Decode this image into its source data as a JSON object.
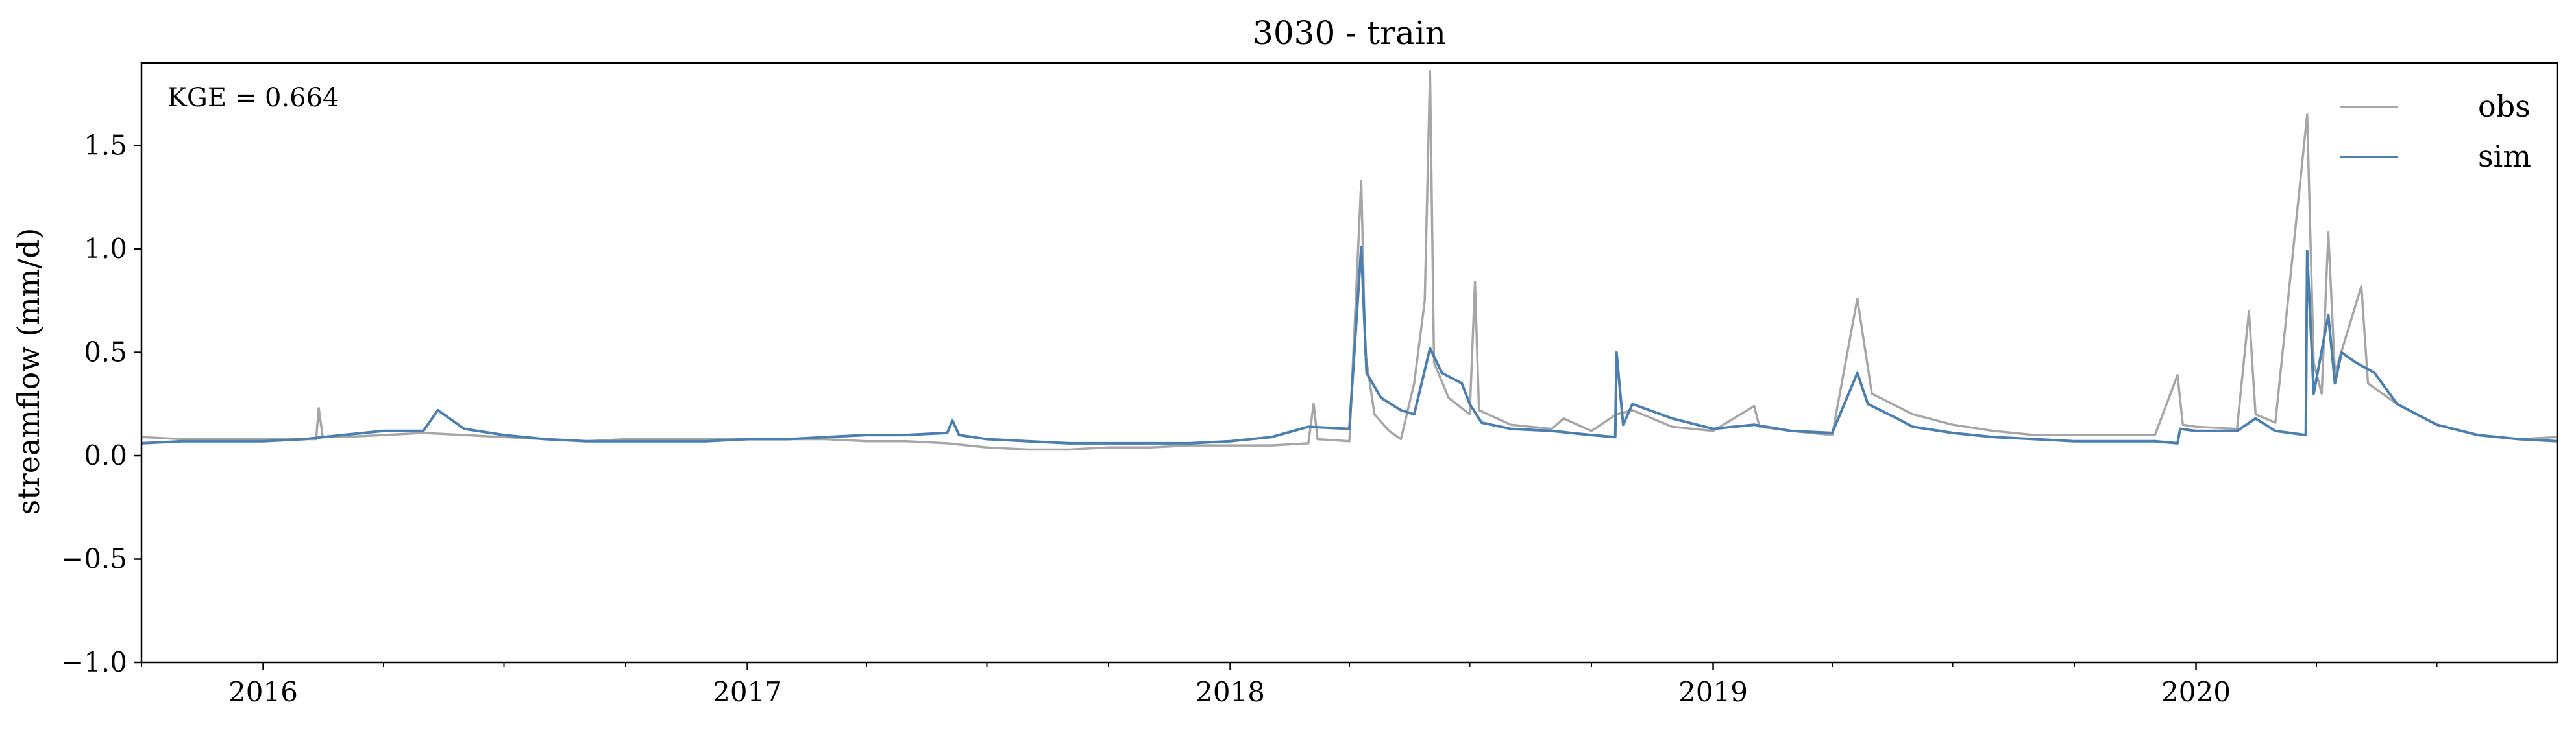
{
  "chart_data": {
    "type": "line",
    "title": "3030 - train",
    "xlabel": "",
    "ylabel": "streamflow (mm/d)",
    "ylim": [
      -1.0,
      1.9
    ],
    "xlim": [
      "2015-10-01",
      "2020-09-30"
    ],
    "yticks": [
      -1.0,
      -0.5,
      0.0,
      0.5,
      1.0,
      1.5
    ],
    "ytick_labels": [
      "−1.0",
      "−0.5",
      "0.0",
      "0.5",
      "1.0",
      "1.5"
    ],
    "xticks": [
      "2016-01-01",
      "2017-01-01",
      "2018-01-01",
      "2019-01-01",
      "2020-01-01"
    ],
    "xtick_labels": [
      "2016",
      "2017",
      "2018",
      "2019",
      "2020"
    ],
    "grid": false,
    "legend_position": "top-right",
    "annotation": "KGE = 0.664",
    "series": [
      {
        "name": "obs",
        "color": "#a6a6a6",
        "points": [
          [
            "2015-10-01",
            0.09
          ],
          [
            "2015-11-01",
            0.08
          ],
          [
            "2015-12-01",
            0.08
          ],
          [
            "2016-01-01",
            0.08
          ],
          [
            "2016-02-01",
            0.08
          ],
          [
            "2016-02-10",
            0.08
          ],
          [
            "2016-02-12",
            0.23
          ],
          [
            "2016-02-15",
            0.09
          ],
          [
            "2016-03-01",
            0.09
          ],
          [
            "2016-04-01",
            0.1
          ],
          [
            "2016-05-01",
            0.11
          ],
          [
            "2016-06-01",
            0.1
          ],
          [
            "2016-07-01",
            0.09
          ],
          [
            "2016-08-01",
            0.08
          ],
          [
            "2016-09-01",
            0.07
          ],
          [
            "2016-10-01",
            0.08
          ],
          [
            "2016-11-01",
            0.08
          ],
          [
            "2016-12-01",
            0.08
          ],
          [
            "2017-01-01",
            0.08
          ],
          [
            "2017-02-01",
            0.08
          ],
          [
            "2017-03-01",
            0.08
          ],
          [
            "2017-04-01",
            0.07
          ],
          [
            "2017-05-01",
            0.07
          ],
          [
            "2017-06-01",
            0.06
          ],
          [
            "2017-07-01",
            0.04
          ],
          [
            "2017-08-01",
            0.03
          ],
          [
            "2017-09-01",
            0.03
          ],
          [
            "2017-10-01",
            0.04
          ],
          [
            "2017-11-01",
            0.04
          ],
          [
            "2017-12-01",
            0.05
          ],
          [
            "2018-01-01",
            0.05
          ],
          [
            "2018-02-01",
            0.05
          ],
          [
            "2018-03-01",
            0.06
          ],
          [
            "2018-03-05",
            0.25
          ],
          [
            "2018-03-08",
            0.08
          ],
          [
            "2018-04-01",
            0.07
          ],
          [
            "2018-04-10",
            1.33
          ],
          [
            "2018-04-13",
            0.5
          ],
          [
            "2018-04-20",
            0.2
          ],
          [
            "2018-05-01",
            0.12
          ],
          [
            "2018-05-10",
            0.08
          ],
          [
            "2018-05-20",
            0.35
          ],
          [
            "2018-05-28",
            0.75
          ],
          [
            "2018-06-01",
            1.86
          ],
          [
            "2018-06-04",
            0.45
          ],
          [
            "2018-06-15",
            0.28
          ],
          [
            "2018-07-01",
            0.2
          ],
          [
            "2018-07-05",
            0.84
          ],
          [
            "2018-07-08",
            0.22
          ],
          [
            "2018-08-01",
            0.15
          ],
          [
            "2018-09-01",
            0.13
          ],
          [
            "2018-09-10",
            0.18
          ],
          [
            "2018-10-01",
            0.12
          ],
          [
            "2018-10-20",
            0.2
          ],
          [
            "2018-11-01",
            0.22
          ],
          [
            "2018-12-01",
            0.14
          ],
          [
            "2019-01-01",
            0.12
          ],
          [
            "2019-02-01",
            0.24
          ],
          [
            "2019-02-05",
            0.14
          ],
          [
            "2019-03-01",
            0.12
          ],
          [
            "2019-04-01",
            0.1
          ],
          [
            "2019-04-20",
            0.76
          ],
          [
            "2019-04-25",
            0.55
          ],
          [
            "2019-05-01",
            0.3
          ],
          [
            "2019-06-01",
            0.2
          ],
          [
            "2019-07-01",
            0.15
          ],
          [
            "2019-08-01",
            0.12
          ],
          [
            "2019-09-01",
            0.1
          ],
          [
            "2019-10-01",
            0.1
          ],
          [
            "2019-11-01",
            0.1
          ],
          [
            "2019-12-01",
            0.1
          ],
          [
            "2019-12-18",
            0.39
          ],
          [
            "2019-12-22",
            0.15
          ],
          [
            "2020-01-01",
            0.14
          ],
          [
            "2020-02-01",
            0.13
          ],
          [
            "2020-02-10",
            0.7
          ],
          [
            "2020-02-15",
            0.2
          ],
          [
            "2020-03-01",
            0.16
          ],
          [
            "2020-03-25",
            1.65
          ],
          [
            "2020-03-30",
            0.45
          ],
          [
            "2020-04-05",
            0.3
          ],
          [
            "2020-04-10",
            1.08
          ],
          [
            "2020-04-15",
            0.4
          ],
          [
            "2020-05-05",
            0.82
          ],
          [
            "2020-05-10",
            0.35
          ],
          [
            "2020-06-01",
            0.25
          ],
          [
            "2020-07-01",
            0.15
          ],
          [
            "2020-08-01",
            0.1
          ],
          [
            "2020-09-01",
            0.08
          ],
          [
            "2020-09-30",
            0.09
          ]
        ]
      },
      {
        "name": "sim",
        "color": "#4a7fb0",
        "points": [
          [
            "2015-10-01",
            0.06
          ],
          [
            "2015-11-01",
            0.07
          ],
          [
            "2015-12-01",
            0.07
          ],
          [
            "2016-01-01",
            0.07
          ],
          [
            "2016-02-01",
            0.08
          ],
          [
            "2016-03-01",
            0.1
          ],
          [
            "2016-04-01",
            0.12
          ],
          [
            "2016-05-01",
            0.12
          ],
          [
            "2016-05-12",
            0.22
          ],
          [
            "2016-06-01",
            0.13
          ],
          [
            "2016-07-01",
            0.1
          ],
          [
            "2016-08-01",
            0.08
          ],
          [
            "2016-09-01",
            0.07
          ],
          [
            "2016-10-01",
            0.07
          ],
          [
            "2016-11-01",
            0.07
          ],
          [
            "2016-12-01",
            0.07
          ],
          [
            "2017-01-01",
            0.08
          ],
          [
            "2017-02-01",
            0.08
          ],
          [
            "2017-03-01",
            0.09
          ],
          [
            "2017-04-01",
            0.1
          ],
          [
            "2017-05-01",
            0.1
          ],
          [
            "2017-06-01",
            0.11
          ],
          [
            "2017-06-05",
            0.17
          ],
          [
            "2017-06-10",
            0.1
          ],
          [
            "2017-07-01",
            0.08
          ],
          [
            "2017-08-01",
            0.07
          ],
          [
            "2017-09-01",
            0.06
          ],
          [
            "2017-10-01",
            0.06
          ],
          [
            "2017-11-01",
            0.06
          ],
          [
            "2017-12-01",
            0.06
          ],
          [
            "2018-01-01",
            0.07
          ],
          [
            "2018-02-01",
            0.09
          ],
          [
            "2018-03-01",
            0.14
          ],
          [
            "2018-04-01",
            0.13
          ],
          [
            "2018-04-10",
            1.01
          ],
          [
            "2018-04-14",
            0.4
          ],
          [
            "2018-04-25",
            0.28
          ],
          [
            "2018-05-10",
            0.22
          ],
          [
            "2018-05-20",
            0.2
          ],
          [
            "2018-06-01",
            0.52
          ],
          [
            "2018-06-10",
            0.4
          ],
          [
            "2018-06-25",
            0.35
          ],
          [
            "2018-07-01",
            0.25
          ],
          [
            "2018-07-10",
            0.16
          ],
          [
            "2018-08-01",
            0.13
          ],
          [
            "2018-09-01",
            0.12
          ],
          [
            "2018-10-01",
            0.1
          ],
          [
            "2018-10-19",
            0.09
          ],
          [
            "2018-10-20",
            0.5
          ],
          [
            "2018-10-25",
            0.15
          ],
          [
            "2018-11-01",
            0.25
          ],
          [
            "2018-12-01",
            0.18
          ],
          [
            "2019-01-01",
            0.13
          ],
          [
            "2019-02-01",
            0.15
          ],
          [
            "2019-03-01",
            0.12
          ],
          [
            "2019-04-01",
            0.11
          ],
          [
            "2019-04-20",
            0.4
          ],
          [
            "2019-04-28",
            0.25
          ],
          [
            "2019-05-20",
            0.18
          ],
          [
            "2019-06-01",
            0.14
          ],
          [
            "2019-07-01",
            0.11
          ],
          [
            "2019-08-01",
            0.09
          ],
          [
            "2019-09-01",
            0.08
          ],
          [
            "2019-10-01",
            0.07
          ],
          [
            "2019-11-01",
            0.07
          ],
          [
            "2019-12-01",
            0.07
          ],
          [
            "2019-12-18",
            0.06
          ],
          [
            "2019-12-20",
            0.13
          ],
          [
            "2020-01-01",
            0.12
          ],
          [
            "2020-02-01",
            0.12
          ],
          [
            "2020-02-15",
            0.18
          ],
          [
            "2020-03-01",
            0.12
          ],
          [
            "2020-03-24",
            0.1
          ],
          [
            "2020-03-25",
            0.99
          ],
          [
            "2020-03-30",
            0.3
          ],
          [
            "2020-04-10",
            0.68
          ],
          [
            "2020-04-15",
            0.35
          ],
          [
            "2020-04-20",
            0.5
          ],
          [
            "2020-05-01",
            0.45
          ],
          [
            "2020-05-15",
            0.4
          ],
          [
            "2020-06-01",
            0.25
          ],
          [
            "2020-07-01",
            0.15
          ],
          [
            "2020-08-01",
            0.1
          ],
          [
            "2020-09-01",
            0.08
          ],
          [
            "2020-09-30",
            0.07
          ]
        ]
      }
    ]
  }
}
